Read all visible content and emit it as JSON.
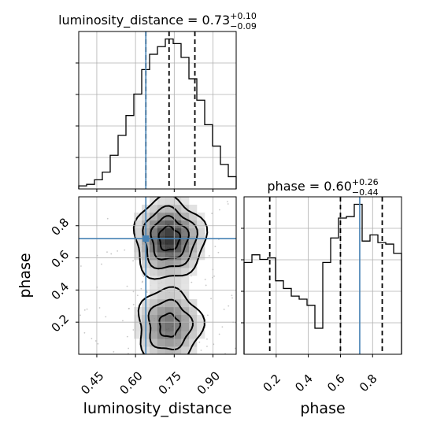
{
  "chart_data": [
    {
      "type": "histogram",
      "panel": "luminosity_distance-marginal",
      "title": {
        "parameter": "luminosity_distance",
        "median_text": "0.73",
        "upper_text": "+0.10",
        "lower_text": "−0.09"
      },
      "x_range": [
        0.38,
        0.99
      ],
      "x_ticks": [
        0.45,
        0.6,
        0.75,
        0.9
      ],
      "x_tick_labels": [
        "0.45",
        "0.60",
        "0.75",
        "0.90"
      ],
      "bin_edges": [
        0.38,
        0.4105,
        0.441,
        0.4715,
        0.502,
        0.5325,
        0.563,
        0.5935,
        0.624,
        0.6545,
        0.685,
        0.7155,
        0.746,
        0.7765,
        0.807,
        0.8375,
        0.868,
        0.8985,
        0.929,
        0.9595,
        0.99
      ],
      "counts": [
        0.02,
        0.03,
        0.06,
        0.11,
        0.22,
        0.35,
        0.48,
        0.62,
        0.78,
        0.88,
        0.93,
        0.98,
        0.95,
        0.86,
        0.72,
        0.58,
        0.42,
        0.28,
        0.16,
        0.08
      ],
      "quantile_lines": [
        0.64,
        0.73,
        0.83
      ],
      "truth_value": 0.64,
      "grid": true
    },
    {
      "type": "histogram",
      "panel": "phase-marginal",
      "title": {
        "parameter": "phase",
        "median_text": "0.60",
        "upper_text": "+0.26",
        "lower_text": "−0.44"
      },
      "x_range": [
        0.0,
        0.98
      ],
      "x_ticks": [
        0.2,
        0.4,
        0.6,
        0.8
      ],
      "x_tick_labels": [
        "0.2",
        "0.4",
        "0.6",
        "0.8"
      ],
      "bin_edges": [
        0.0,
        0.049,
        0.098,
        0.147,
        0.196,
        0.245,
        0.294,
        0.343,
        0.392,
        0.441,
        0.49,
        0.539,
        0.588,
        0.637,
        0.686,
        0.735,
        0.784,
        0.833,
        0.882,
        0.931,
        0.98
      ],
      "counts": [
        0.6,
        0.65,
        0.62,
        0.63,
        0.48,
        0.43,
        0.38,
        0.36,
        0.32,
        0.17,
        0.6,
        0.76,
        0.89,
        0.9,
        0.98,
        0.74,
        0.78,
        0.73,
        0.72,
        0.66
      ],
      "quantile_lines": [
        0.16,
        0.6,
        0.86
      ],
      "truth_value": 0.72,
      "grid": true
    },
    {
      "type": "contour",
      "panel": "luminosity_distance-vs-phase",
      "xlabel": "luminosity_distance",
      "ylabel": "phase",
      "x_range": [
        0.38,
        0.99
      ],
      "y_range": [
        0.0,
        0.98
      ],
      "x_ticks": [
        0.45,
        0.6,
        0.75,
        0.9
      ],
      "x_tick_labels": [
        "0.45",
        "0.60",
        "0.75",
        "0.90"
      ],
      "y_ticks": [
        0.2,
        0.4,
        0.6,
        0.8
      ],
      "y_tick_labels": [
        "0.2",
        "0.4",
        "0.6",
        "0.8"
      ],
      "truth": {
        "x": 0.64,
        "y": 0.72
      },
      "density_blobs": [
        {
          "x": 0.73,
          "y": 0.72,
          "sx": 0.07,
          "sy": 0.13,
          "w": 1.0
        },
        {
          "x": 0.73,
          "y": 0.18,
          "sx": 0.07,
          "sy": 0.13,
          "w": 0.7
        }
      ],
      "grid": true
    }
  ]
}
